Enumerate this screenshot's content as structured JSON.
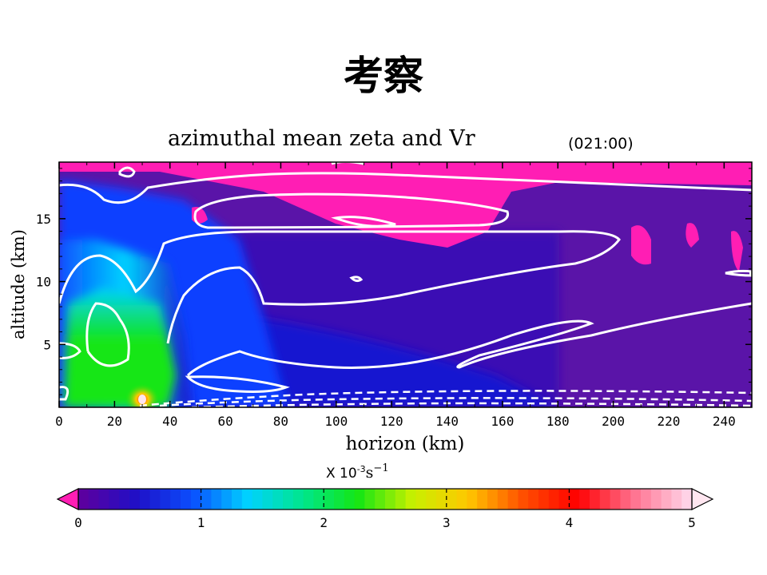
{
  "slide": {
    "title": "考察"
  },
  "chart_data": {
    "type": "heatmap",
    "title": "azimuthal mean zeta and Vr",
    "time_label": "(021:00)",
    "xlabel": "horizon (km)",
    "ylabel": "altitude (km)",
    "xlim": [
      0,
      250
    ],
    "ylim": [
      0,
      19.5
    ],
    "x_ticks": [
      "0",
      "20",
      "40",
      "60",
      "80",
      "100",
      "120",
      "140",
      "160",
      "180",
      "200",
      "220",
      "240"
    ],
    "x_tick_values": [
      0,
      20,
      40,
      60,
      80,
      100,
      120,
      140,
      160,
      180,
      200,
      220,
      240
    ],
    "y_ticks": [
      "5",
      "10",
      "15"
    ],
    "y_tick_values": [
      5,
      10,
      15
    ],
    "units_prefix": "X 10",
    "units_exponent": "-3",
    "units_suffix": "s",
    "units_suffix_exponent": "−1",
    "colorbar": {
      "min": 0,
      "max": 5,
      "ticks": [
        "0",
        "1",
        "2",
        "3",
        "4",
        "5"
      ],
      "tick_values": [
        0,
        1,
        2,
        3,
        4,
        5
      ],
      "under_color": "#ff1eb4",
      "over_color": "#ffe6f0",
      "stops": [
        "#5a00a0",
        "#1e10c8",
        "#0a50ff",
        "#00d2ff",
        "#00e68c",
        "#14e614",
        "#c8f000",
        "#ffc800",
        "#ff5000",
        "#ff0000",
        "#ff6e8c",
        "#ffd2e6"
      ]
    },
    "field_description_values": {
      "core_peak": 5.0,
      "eyewall_low_level": 2.0,
      "outer_region": 0.2,
      "upper_outflow": -0.1
    },
    "contours_solid_count": 7,
    "contours_dashed_count": 3
  },
  "colors": {
    "contour": "#ffffff",
    "axis": "#000000"
  }
}
